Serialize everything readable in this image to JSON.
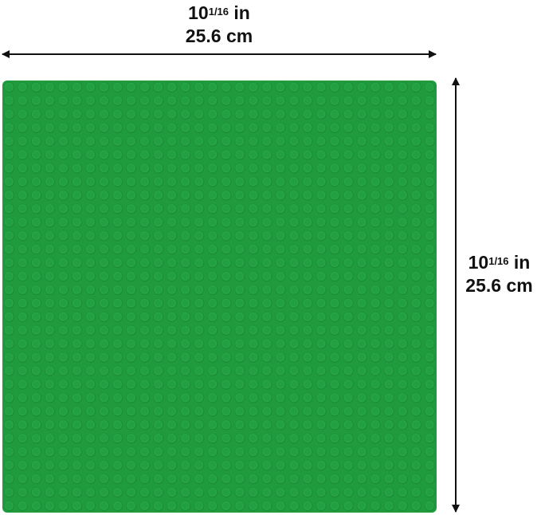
{
  "width_dimension": {
    "whole": "10",
    "fraction": "1/16",
    "unit_in": "in",
    "metric": "25.6 cm"
  },
  "height_dimension": {
    "whole": "10",
    "fraction": "1/16",
    "unit_in": "in",
    "metric": "25.6 cm"
  },
  "baseplate": {
    "color": "#1f9a3c",
    "studs_per_side": 32
  }
}
